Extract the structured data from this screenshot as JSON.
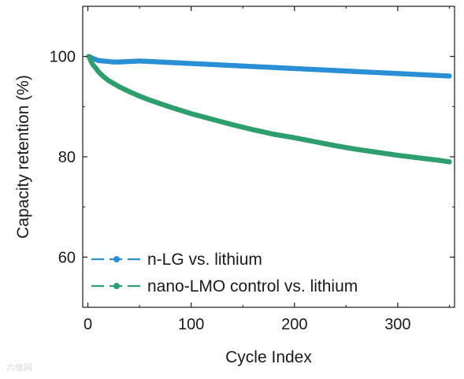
{
  "chart_data": {
    "type": "scatter",
    "title": "",
    "xlabel": "Cycle Index",
    "ylabel": "Capacity retention (%)",
    "xlim": [
      -5,
      355
    ],
    "ylim": [
      50,
      110
    ],
    "xticks": [
      0,
      100,
      200,
      300
    ],
    "yticks": [
      60,
      80,
      100
    ],
    "grid": false,
    "legend_position": "bottom-left",
    "series": [
      {
        "name": "n-LG vs. lithium",
        "color": "#2a8fd4",
        "x": [
          1,
          5,
          10,
          15,
          20,
          25,
          30,
          40,
          50,
          60,
          70,
          80,
          100,
          120,
          140,
          160,
          180,
          200,
          220,
          240,
          260,
          280,
          300,
          320,
          340,
          350
        ],
        "y": [
          100.0,
          99.6,
          99.2,
          99.1,
          99.0,
          98.9,
          98.9,
          99.0,
          99.1,
          99.0,
          98.9,
          98.8,
          98.6,
          98.4,
          98.2,
          98.0,
          97.8,
          97.6,
          97.4,
          97.2,
          97.0,
          96.8,
          96.6,
          96.4,
          96.2,
          96.1
        ]
      },
      {
        "name": "nano-LMO control vs. lithium",
        "color": "#2e9e6e",
        "x": [
          1,
          3,
          5,
          8,
          10,
          15,
          20,
          25,
          30,
          40,
          50,
          60,
          70,
          80,
          100,
          120,
          140,
          160,
          180,
          200,
          220,
          240,
          260,
          280,
          300,
          320,
          340,
          350
        ],
        "y": [
          100.0,
          99.0,
          98.3,
          97.6,
          97.0,
          96.0,
          95.2,
          94.6,
          94.0,
          93.0,
          92.1,
          91.3,
          90.6,
          89.9,
          88.6,
          87.5,
          86.4,
          85.4,
          84.5,
          83.8,
          83.0,
          82.2,
          81.5,
          80.9,
          80.3,
          79.8,
          79.3,
          79.0
        ]
      }
    ]
  },
  "watermark_text": "六维网"
}
